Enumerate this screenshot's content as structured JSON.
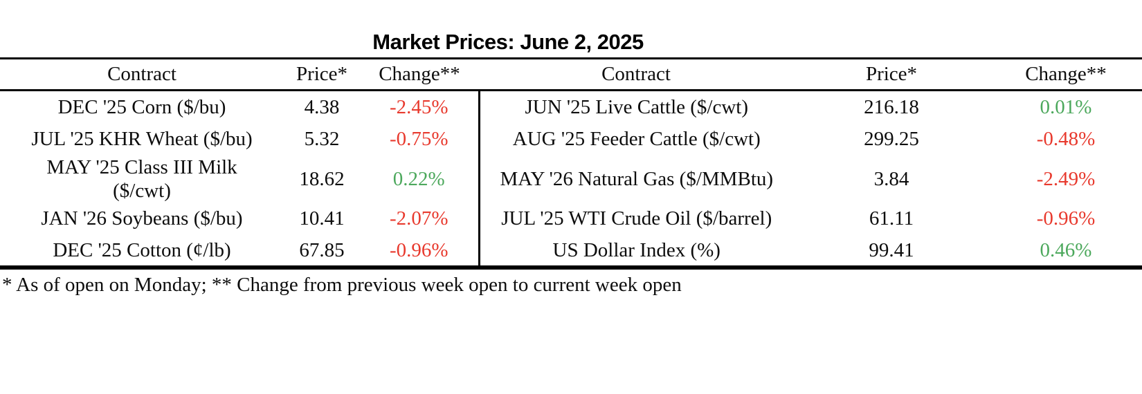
{
  "chart_data": {
    "type": "table",
    "title": "Market Prices: June 2, 2025",
    "columns": [
      "Contract",
      "Price*",
      "Change**"
    ],
    "left_rows": [
      {
        "contract": "DEC '25 Corn ($/bu)",
        "price": "4.38",
        "change": "-2.45%",
        "trend": "down"
      },
      {
        "contract": "JUL '25 KHR Wheat ($/bu)",
        "price": "5.32",
        "change": "-0.75%",
        "trend": "down"
      },
      {
        "contract": "MAY '25 Class III Milk ($/cwt)",
        "price": "18.62",
        "change": "0.22%",
        "trend": "up"
      },
      {
        "contract": "JAN '26 Soybeans ($/bu)",
        "price": "10.41",
        "change": "-2.07%",
        "trend": "down"
      },
      {
        "contract": "DEC '25 Cotton (¢/lb)",
        "price": "67.85",
        "change": "-0.96%",
        "trend": "down"
      }
    ],
    "right_rows": [
      {
        "contract": "JUN '25 Live Cattle ($/cwt)",
        "price": "216.18",
        "change": "0.01%",
        "trend": "up"
      },
      {
        "contract": "AUG '25 Feeder Cattle ($/cwt)",
        "price": "299.25",
        "change": "-0.48%",
        "trend": "down"
      },
      {
        "contract": "MAY '26 Natural Gas ($/MMBtu)",
        "price": "3.84",
        "change": "-2.49%",
        "trend": "down"
      },
      {
        "contract": "JUL '25 WTI Crude Oil ($/barrel)",
        "price": "61.11",
        "change": "-0.96%",
        "trend": "down"
      },
      {
        "contract": "US Dollar Index (%)",
        "price": "99.41",
        "change": "0.46%",
        "trend": "up"
      }
    ],
    "footnote": "* As of open on Monday; ** Change from previous week open to current week open",
    "layout": {
      "legend": "none",
      "grid": "horizontal-rules-and-center-divider"
    }
  },
  "colors": {
    "positive": "#4ca85c",
    "negative": "#e8392d",
    "text": "#0d0d0d",
    "rule": "#000000",
    "background": "#ffffff"
  }
}
